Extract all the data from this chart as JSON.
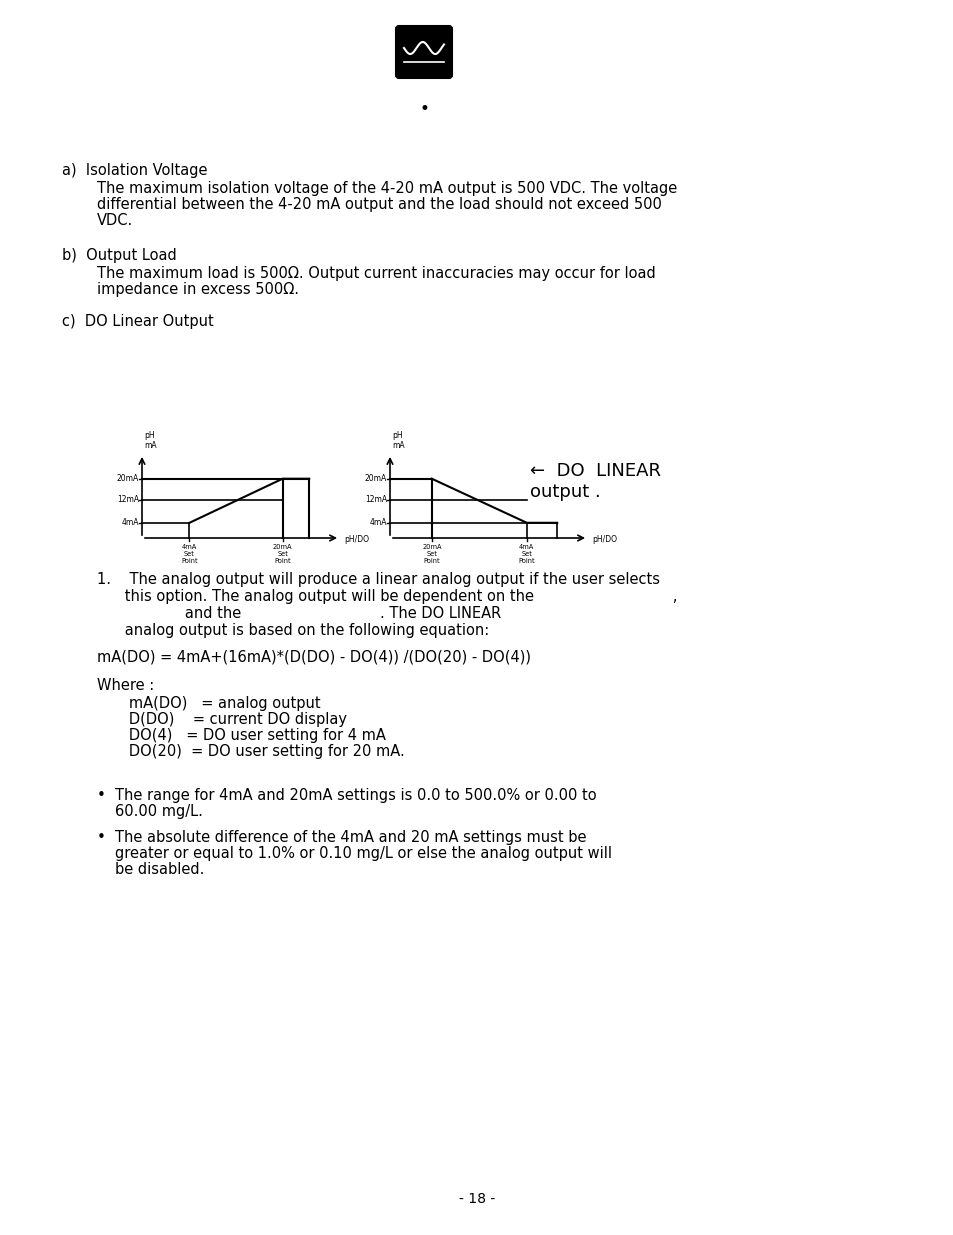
{
  "background_color": "#ffffff",
  "page_number": "- 18 -",
  "section_a_title": "a)  Isolation Voltage",
  "section_a_text1": "The maximum isolation voltage of the 4-20 mA output is 500 VDC. The voltage",
  "section_a_text2": "differential between the 4-20 mA output and the load should not exceed 500",
  "section_a_text3": "VDC.",
  "section_b_title": "b)  Output Load",
  "section_b_text1": "The maximum load is 500Ω. Output current inaccuracies may occur for load",
  "section_b_text2": "impedance in excess 500Ω.",
  "section_c_title": "c)  DO Linear Output",
  "arrow_label": "←  DO  LINEAR\noutput .",
  "item1_line1": "1.    The analog output will produce a linear analog output if the user selects",
  "item1_line2": "      this option. The analog output will be dependent on the                              ,",
  "item1_line3": "                   and the                              . The DO LINEAR",
  "item1_line4": "      analog output is based on the following equation:",
  "equation": "mA(DO) = 4mA+(16mA)*(D(DO) - DO(4)) /(DO(20) - DO(4))",
  "where_label": "Where :",
  "where_line1": "   mA(DO)   = analog output",
  "where_line2": "   D(DO)    = current DO display",
  "where_line3": "   DO(4)   = DO user setting for 4 mA",
  "where_line4": "   DO(20)  = DO user setting for 20 mA.",
  "bullet1_line1": "The range for 4mA and 20mA settings is 0.0 to 500.0% or 0.00 to",
  "bullet1_line2": "60.00 mg/L.",
  "bullet2_line1": "The absolute difference of the 4mA and 20 mA settings must be",
  "bullet2_line2": "greater or equal to 1.0% or 0.10 mg/L or else the analog output will",
  "bullet2_line3": "be disabled."
}
